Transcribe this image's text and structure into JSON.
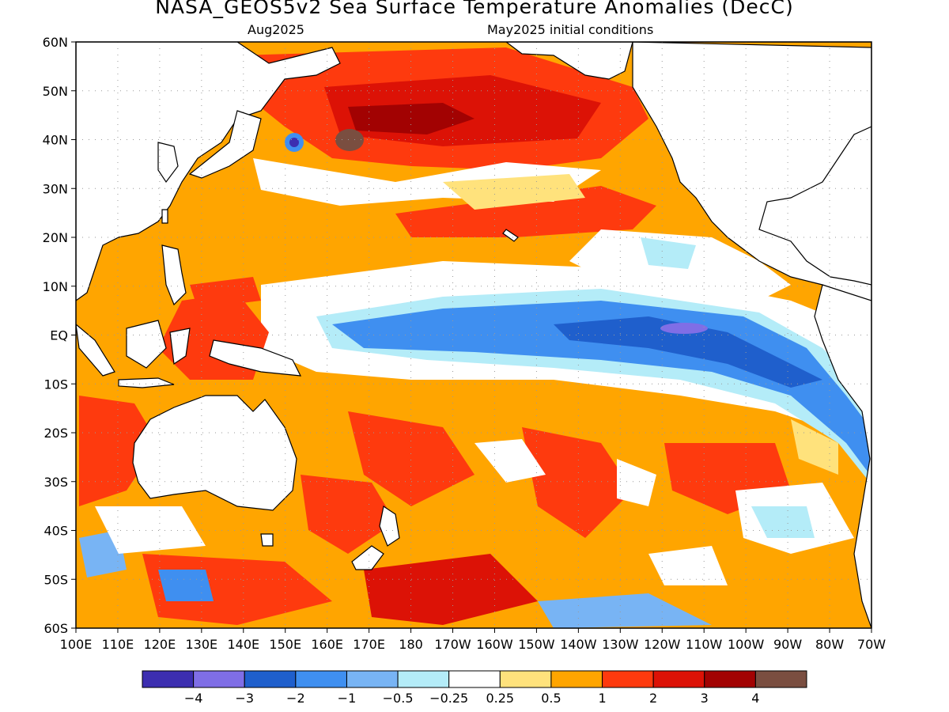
{
  "title": "NASA_GEOS5v2 Sea Surface Temperature Anomalies (DecC)",
  "subtitle_left": "Aug2025",
  "subtitle_right": "May2025 initial conditions",
  "lat_labels": [
    "60N",
    "50N",
    "40N",
    "30N",
    "20N",
    "10N",
    "EQ",
    "10S",
    "20S",
    "30S",
    "40S",
    "50S",
    "60S"
  ],
  "lon_labels": [
    "100E",
    "110E",
    "120E",
    "130E",
    "140E",
    "150E",
    "160E",
    "170E",
    "180",
    "170W",
    "160W",
    "150W",
    "140W",
    "130W",
    "120W",
    "110W",
    "100W",
    "90W",
    "80W",
    "70W"
  ],
  "legend": {
    "labels": [
      "−4",
      "−3",
      "−2",
      "−1",
      "−0.5",
      "−0.25",
      "0.25",
      "0.5",
      "1",
      "2",
      "3",
      "4"
    ],
    "colors": [
      "#3c2eb0",
      "#7f6ee6",
      "#1f5fcc",
      "#3f8ff0",
      "#78b4f4",
      "#b4ecf8",
      "#ffffff",
      "#ffe27c",
      "#ffa500",
      "#fe3a0e",
      "#dc1206",
      "#a20202",
      "#7a4e40"
    ]
  },
  "colors": {
    "land": "#ffffff",
    "coast": "#000000",
    "grid": "#9a9a9a"
  }
}
